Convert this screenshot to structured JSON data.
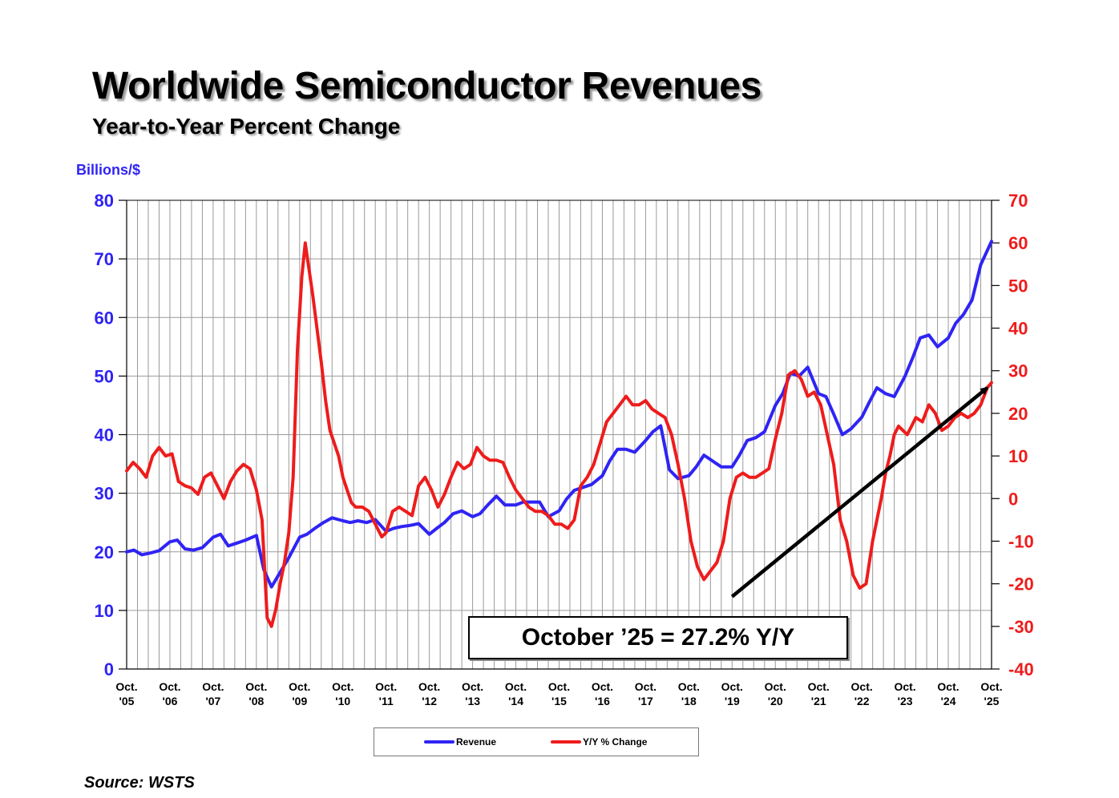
{
  "title": "Worldwide Semiconductor Revenues",
  "subtitle": "Year-to-Year Percent Change",
  "left_axis_unit": "Billions/$",
  "annotation": "October ’25 = 27.2% Y/Y",
  "source": "Source: WSTS",
  "colors": {
    "revenue": "#2f24f4",
    "yoy": "#ee1c1c",
    "trend_arrow": "#000000",
    "grid": "#999999"
  },
  "chart_data": {
    "type": "line",
    "title": "Worldwide Semiconductor Revenues",
    "subtitle": "Year-to-Year Percent Change",
    "y_left": {
      "label": "Billions/$",
      "range": [
        0,
        80
      ],
      "ticks": [
        "0",
        "10",
        "20",
        "30",
        "40",
        "50",
        "60",
        "70",
        "80"
      ]
    },
    "y_right": {
      "range": [
        -40,
        70
      ],
      "ticks": [
        "-40",
        "-30",
        "-20",
        "-10",
        "0",
        "10",
        "20",
        "30",
        "40",
        "50",
        "60",
        "70"
      ]
    },
    "x_range": [
      2005.75,
      2025.75
    ],
    "x_ticks": [
      {
        "x": 2005.75,
        "line1": "Oct.",
        "line2": "'05"
      },
      {
        "x": 2006.75,
        "line1": "Oct.",
        "line2": "'06"
      },
      {
        "x": 2007.75,
        "line1": "Oct.",
        "line2": "'07"
      },
      {
        "x": 2008.75,
        "line1": "Oct.",
        "line2": "'08"
      },
      {
        "x": 2009.75,
        "line1": "Oct.",
        "line2": "'09"
      },
      {
        "x": 2010.75,
        "line1": "Oct.",
        "line2": "'10"
      },
      {
        "x": 2011.75,
        "line1": "Oct.",
        "line2": "'11"
      },
      {
        "x": 2012.75,
        "line1": "Oct.",
        "line2": "'12"
      },
      {
        "x": 2013.75,
        "line1": "Oct.",
        "line2": "'13"
      },
      {
        "x": 2014.75,
        "line1": "Oct.",
        "line2": "'14"
      },
      {
        "x": 2015.75,
        "line1": "Oct.",
        "line2": "'15"
      },
      {
        "x": 2016.75,
        "line1": "Oct.",
        "line2": "'16"
      },
      {
        "x": 2017.75,
        "line1": "Oct.",
        "line2": "'17"
      },
      {
        "x": 2018.75,
        "line1": "Oct.",
        "line2": "'18"
      },
      {
        "x": 2019.75,
        "line1": "Oct.",
        "line2": "'19"
      },
      {
        "x": 2020.75,
        "line1": "Oct.",
        "line2": "'20"
      },
      {
        "x": 2021.75,
        "line1": "Oct.",
        "line2": "'21"
      },
      {
        "x": 2022.75,
        "line1": "Oct.",
        "line2": "'22"
      },
      {
        "x": 2023.75,
        "line1": "Oct.",
        "line2": "'23"
      },
      {
        "x": 2024.75,
        "line1": "Oct.",
        "line2": "'24"
      },
      {
        "x": 2025.75,
        "line1": "Oct.",
        "line2": "'25"
      }
    ],
    "series": [
      {
        "name": "Revenue",
        "axis": "left",
        "x": [
          2005.75,
          2005.92,
          2006.1,
          2006.3,
          2006.5,
          2006.75,
          2006.92,
          2007.1,
          2007.3,
          2007.5,
          2007.75,
          2007.92,
          2008.1,
          2008.3,
          2008.5,
          2008.75,
          2008.92,
          2009.1,
          2009.3,
          2009.5,
          2009.75,
          2009.92,
          2010.1,
          2010.3,
          2010.5,
          2010.75,
          2010.92,
          2011.1,
          2011.3,
          2011.5,
          2011.75,
          2011.92,
          2012.1,
          2012.3,
          2012.5,
          2012.75,
          2012.92,
          2013.1,
          2013.3,
          2013.5,
          2013.75,
          2013.92,
          2014.1,
          2014.3,
          2014.5,
          2014.75,
          2014.92,
          2015.1,
          2015.3,
          2015.5,
          2015.75,
          2015.92,
          2016.1,
          2016.3,
          2016.5,
          2016.75,
          2016.92,
          2017.1,
          2017.3,
          2017.5,
          2017.75,
          2017.92,
          2018.1,
          2018.3,
          2018.5,
          2018.75,
          2018.92,
          2019.1,
          2019.3,
          2019.5,
          2019.75,
          2019.92,
          2020.1,
          2020.3,
          2020.5,
          2020.75,
          2020.92,
          2021.1,
          2021.3,
          2021.5,
          2021.75,
          2021.92,
          2022.1,
          2022.3,
          2022.5,
          2022.75,
          2022.92,
          2023.1,
          2023.3,
          2023.5,
          2023.75,
          2023.92,
          2024.1,
          2024.3,
          2024.5,
          2024.75,
          2024.92,
          2025.1,
          2025.3,
          2025.5,
          2025.75
        ],
        "values": [
          20.0,
          20.3,
          19.5,
          19.8,
          20.2,
          21.7,
          22.0,
          20.5,
          20.3,
          20.7,
          22.5,
          23.0,
          21.0,
          21.5,
          22.0,
          22.8,
          17.0,
          14.0,
          16.5,
          19.0,
          22.5,
          23.0,
          24.0,
          25.0,
          25.8,
          25.3,
          25.0,
          25.3,
          25.0,
          25.5,
          23.5,
          24.0,
          24.3,
          24.5,
          24.8,
          23.0,
          24.0,
          25.0,
          26.5,
          27.0,
          26.0,
          26.5,
          28.0,
          29.5,
          28.0,
          28.0,
          28.5,
          28.5,
          28.5,
          26.0,
          27.0,
          29.0,
          30.5,
          31.0,
          31.5,
          33.0,
          35.5,
          37.5,
          37.5,
          37.0,
          39.0,
          40.5,
          41.5,
          34.0,
          32.5,
          33.0,
          34.5,
          36.5,
          35.5,
          34.5,
          34.5,
          36.5,
          39.0,
          39.5,
          40.5,
          45.0,
          47.0,
          50.5,
          50.0,
          51.5,
          47.0,
          46.5,
          43.5,
          40.0,
          41.0,
          43.0,
          45.5,
          48.0,
          47.0,
          46.5,
          50.0,
          53.0,
          56.5,
          57.0,
          55.0,
          56.5,
          59.0,
          60.5,
          63.0,
          69.0,
          73.0
        ]
      },
      {
        "name": "Y/Y % Change",
        "axis": "right",
        "x": [
          2005.75,
          2005.9,
          2006.05,
          2006.2,
          2006.35,
          2006.5,
          2006.65,
          2006.8,
          2006.95,
          2007.1,
          2007.25,
          2007.4,
          2007.55,
          2007.7,
          2007.85,
          2008.0,
          2008.15,
          2008.3,
          2008.45,
          2008.6,
          2008.75,
          2008.88,
          2009.0,
          2009.1,
          2009.2,
          2009.3,
          2009.4,
          2009.5,
          2009.6,
          2009.7,
          2009.8,
          2009.88,
          2009.95,
          2010.05,
          2010.15,
          2010.25,
          2010.35,
          2010.45,
          2010.55,
          2010.65,
          2010.75,
          2010.85,
          2010.95,
          2011.05,
          2011.2,
          2011.35,
          2011.5,
          2011.65,
          2011.75,
          2011.9,
          2012.05,
          2012.2,
          2012.35,
          2012.5,
          2012.65,
          2012.8,
          2012.95,
          2013.1,
          2013.25,
          2013.4,
          2013.55,
          2013.7,
          2013.85,
          2014.0,
          2014.15,
          2014.3,
          2014.45,
          2014.6,
          2014.75,
          2014.9,
          2015.05,
          2015.2,
          2015.35,
          2015.5,
          2015.65,
          2015.8,
          2015.95,
          2016.1,
          2016.25,
          2016.4,
          2016.55,
          2016.7,
          2016.85,
          2017.0,
          2017.15,
          2017.3,
          2017.45,
          2017.6,
          2017.75,
          2017.9,
          2018.05,
          2018.2,
          2018.35,
          2018.5,
          2018.65,
          2018.8,
          2018.95,
          2019.1,
          2019.25,
          2019.4,
          2019.55,
          2019.7,
          2019.85,
          2020.0,
          2020.15,
          2020.3,
          2020.45,
          2020.6,
          2020.75,
          2020.9,
          2021.05,
          2021.2,
          2021.35,
          2021.5,
          2021.65,
          2021.8,
          2021.95,
          2022.1,
          2022.25,
          2022.4,
          2022.55,
          2022.7,
          2022.85,
          2023.0,
          2023.1,
          2023.2,
          2023.3,
          2023.4,
          2023.5,
          2023.6,
          2023.7,
          2023.8,
          2023.9,
          2024.0,
          2024.15,
          2024.3,
          2024.45,
          2024.6,
          2024.75,
          2024.9,
          2025.05,
          2025.2,
          2025.35,
          2025.5,
          2025.65,
          2025.75
        ],
        "values": [
          6.5,
          8.5,
          7.0,
          5.0,
          10.0,
          12.0,
          10.0,
          10.5,
          4.0,
          3.0,
          2.5,
          1.0,
          5.0,
          6.0,
          3.0,
          0.0,
          4.0,
          6.5,
          8.0,
          7.0,
          2.0,
          -5.0,
          -28.0,
          -30.0,
          -26.0,
          -20.0,
          -15.0,
          -8.0,
          5.0,
          35.0,
          52.0,
          60.0,
          55.0,
          48.0,
          40.0,
          32.0,
          23.0,
          16.0,
          13.0,
          10.0,
          5.0,
          2.0,
          -1.0,
          -2.0,
          -2.0,
          -3.0,
          -6.0,
          -9.0,
          -8.0,
          -3.0,
          -2.0,
          -3.0,
          -4.0,
          3.0,
          5.0,
          2.0,
          -2.0,
          1.0,
          5.0,
          8.5,
          7.0,
          8.0,
          12.0,
          10.0,
          9.0,
          9.0,
          8.5,
          5.0,
          2.0,
          0.0,
          -2.0,
          -3.0,
          -3.0,
          -4.0,
          -6.0,
          -6.0,
          -7.0,
          -5.0,
          3.0,
          5.0,
          8.0,
          13.0,
          18.0,
          20.0,
          22.0,
          24.0,
          22.0,
          22.0,
          23.0,
          21.0,
          20.0,
          19.0,
          15.0,
          8.0,
          0.0,
          -10.0,
          -16.0,
          -19.0,
          -17.0,
          -15.0,
          -10.0,
          0.0,
          5.0,
          6.0,
          5.0,
          5.0,
          6.0,
          7.0,
          14.0,
          20.0,
          29.0,
          30.0,
          28.0,
          24.0,
          25.0,
          22.0,
          15.0,
          8.0,
          -5.0,
          -10.0,
          -18.0,
          -21.0,
          -20.0,
          -10.0,
          -5.0,
          0.0,
          6.0,
          10.0,
          15.0,
          17.0,
          16.0,
          15.0,
          17.0,
          19.0,
          18.0,
          22.0,
          20.0,
          16.0,
          17.0,
          19.0,
          20.0,
          19.0,
          20.0,
          22.0,
          26.0,
          27.2
        ]
      }
    ],
    "legend": [
      {
        "name": "Revenue",
        "color": "#2f24f4"
      },
      {
        "name": "Y/Y % Change",
        "color": "#ee1c1c"
      }
    ],
    "legend_position": "bottom-center",
    "trend_arrow": {
      "from": {
        "x": 2019.75,
        "y_right": -23
      },
      "to": {
        "x": 2025.65,
        "y_right": 26
      }
    }
  }
}
